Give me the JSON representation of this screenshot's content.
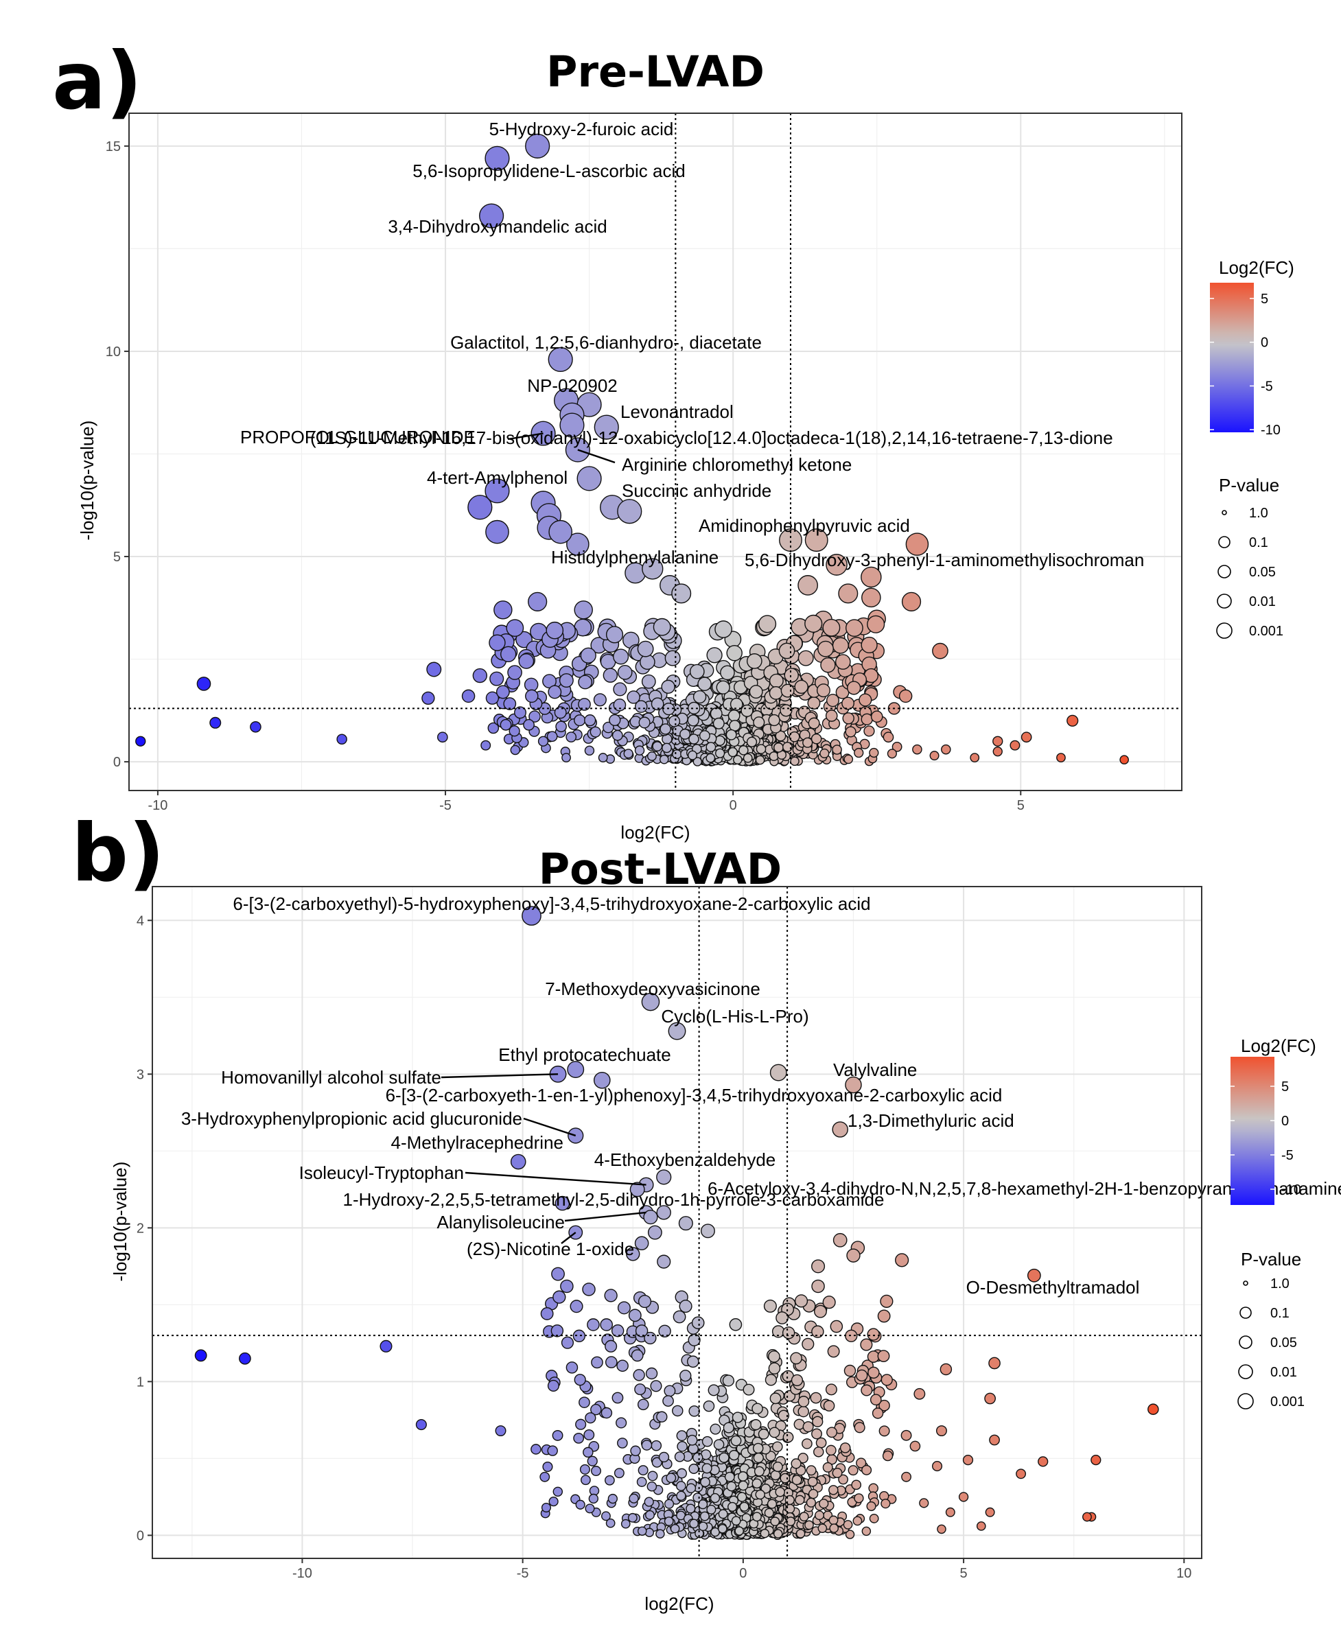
{
  "panels": [
    {
      "letter": "a)",
      "chart_data": {
        "type": "scatter",
        "title": "Pre-LVAD",
        "xlabel": "log2(FC)",
        "ylabel": "-log10(p-value)",
        "xlim": [
          -10.5,
          7.8
        ],
        "ylim": [
          -0.7,
          15.8
        ],
        "xticks": [
          -10,
          -5,
          0,
          5
        ],
        "yticks": [
          0,
          5,
          10,
          15
        ],
        "fc_thresholds": [
          -1,
          1
        ],
        "p_threshold": 1.3,
        "legend": {
          "color_title": "Log2(FC)",
          "color_ticks": [
            5,
            0,
            -5,
            -10
          ],
          "color_range": [
            -10.3,
            6.8
          ],
          "size_title": "P-value",
          "size_labels": [
            "1.0",
            "0.1",
            "0.05",
            "0.01",
            "0.001"
          ]
        },
        "labels": [
          {
            "text": "5-Hydroxy-2-furoic acid",
            "x": -3.4,
            "y": 15.0
          },
          {
            "text": "5,6-Isopropylidene-L-ascorbic acid",
            "x": -4.1,
            "y": 14.7
          },
          {
            "text": "3,4-Dihydroxymandelic acid",
            "x": -4.2,
            "y": 13.3
          },
          {
            "text": "Galactitol, 1,2:5,6-dianhydro-, diacetate",
            "x": -3.0,
            "y": 9.8
          },
          {
            "text": "NP-020902",
            "x": -2.9,
            "y": 8.8
          },
          {
            "text": "Levonantradol",
            "x": -2.5,
            "y": 8.7
          },
          {
            "text": "PROPOFOL GLUCURONIDE",
            "x": -3.3,
            "y": 8.0
          },
          {
            "text": "(11S)-11-Methyl-16,17-bis(oxidanyl)-12-oxabicyclo[12.4.0]octadeca-1(18),2,14,16-tetraene-7,13-dione",
            "x": -2.8,
            "y": 8.2
          },
          {
            "text": "Arginine chloromethyl ketone",
            "x": -2.7,
            "y": 7.6
          },
          {
            "text": "4-tert-Amylphenol",
            "x": -4.1,
            "y": 6.6
          },
          {
            "text": "Succinic anhydride",
            "x": -2.5,
            "y": 6.9
          },
          {
            "text": "Amidinophenylpyruvic acid",
            "x": 1.0,
            "y": 5.4
          },
          {
            "text": "Histidylphenylalanine",
            "x": -1.8,
            "y": 5.0
          },
          {
            "text": "5,6-Dihydroxy-3-phenyl-1-aminomethylisochroman",
            "x": 3.2,
            "y": 5.3
          }
        ]
      }
    },
    {
      "letter": "b)",
      "chart_data": {
        "type": "scatter",
        "title": "Post-LVAD",
        "xlabel": "log2(FC)",
        "ylabel": "-log10(p-value)",
        "xlim": [
          -13.4,
          10.4
        ],
        "ylim": [
          -0.15,
          4.22
        ],
        "xticks": [
          -10,
          -5,
          0,
          5,
          10
        ],
        "yticks": [
          0,
          1,
          2,
          3,
          4
        ],
        "fc_thresholds": [
          -1,
          1
        ],
        "p_threshold": 1.3,
        "legend": {
          "color_title": "Log2(FC)",
          "color_ticks": [
            5,
            0,
            -5,
            -10
          ],
          "color_range": [
            -12.3,
            9.3
          ],
          "size_title": "P-value",
          "size_labels": [
            "1.0",
            "0.1",
            "0.05",
            "0.01",
            "0.001"
          ]
        },
        "labels": [
          {
            "text": "6-[3-(2-carboxyethyl)-5-hydroxyphenoxy]-3,4,5-trihydroxyoxane-2-carboxylic acid",
            "x": -4.8,
            "y": 4.03
          },
          {
            "text": "7-Methoxydeoxyvasicinone",
            "x": -2.1,
            "y": 3.47
          },
          {
            "text": "Cyclo(L-His-L-Pro)",
            "x": -1.5,
            "y": 3.28
          },
          {
            "text": "Ethyl protocatechuate",
            "x": -3.8,
            "y": 3.03
          },
          {
            "text": "Homovanillyl alcohol sulfate",
            "x": -4.2,
            "y": 3.0
          },
          {
            "text": "Valylvaline",
            "x": 2.5,
            "y": 2.93
          },
          {
            "text": "6-[3-(2-carboxyeth-1-en-1-yl)phenoxy]-3,4,5-trihydroxyoxane-2-carboxylic acid",
            "x": -3.2,
            "y": 2.96
          },
          {
            "text": "3-Hydroxyphenylpropionic acid glucuronide",
            "x": -3.8,
            "y": 2.6
          },
          {
            "text": "1,3-Dimethyluric acid",
            "x": 2.2,
            "y": 2.64
          },
          {
            "text": "4-Methylracephedrine",
            "x": -5.1,
            "y": 2.43
          },
          {
            "text": "4-Ethoxybenzaldehyde",
            "x": -1.8,
            "y": 2.33
          },
          {
            "text": "Isoleucyl-Tryptophan",
            "x": -2.2,
            "y": 2.28
          },
          {
            "text": "6-Acetyloxy-3,4-dihydro-N,N,2,5,7,8-hexamethyl-2H-1-benzopyran-2-ethanamine",
            "x": -2.4,
            "y": 2.25
          },
          {
            "text": "1-Hydroxy-2,2,5,5-tetramethyl-2,5-dihydro-1h-pyrrole-3-carboxamide",
            "x": -4.1,
            "y": 2.16
          },
          {
            "text": "Alanylisoleucine",
            "x": -2.2,
            "y": 2.1
          },
          {
            "text": "(2S)-Nicotine 1-oxide",
            "x": -3.8,
            "y": 1.97
          },
          {
            "text": "O-Desmethyltramadol",
            "x": 6.6,
            "y": 1.69
          }
        ]
      }
    }
  ]
}
